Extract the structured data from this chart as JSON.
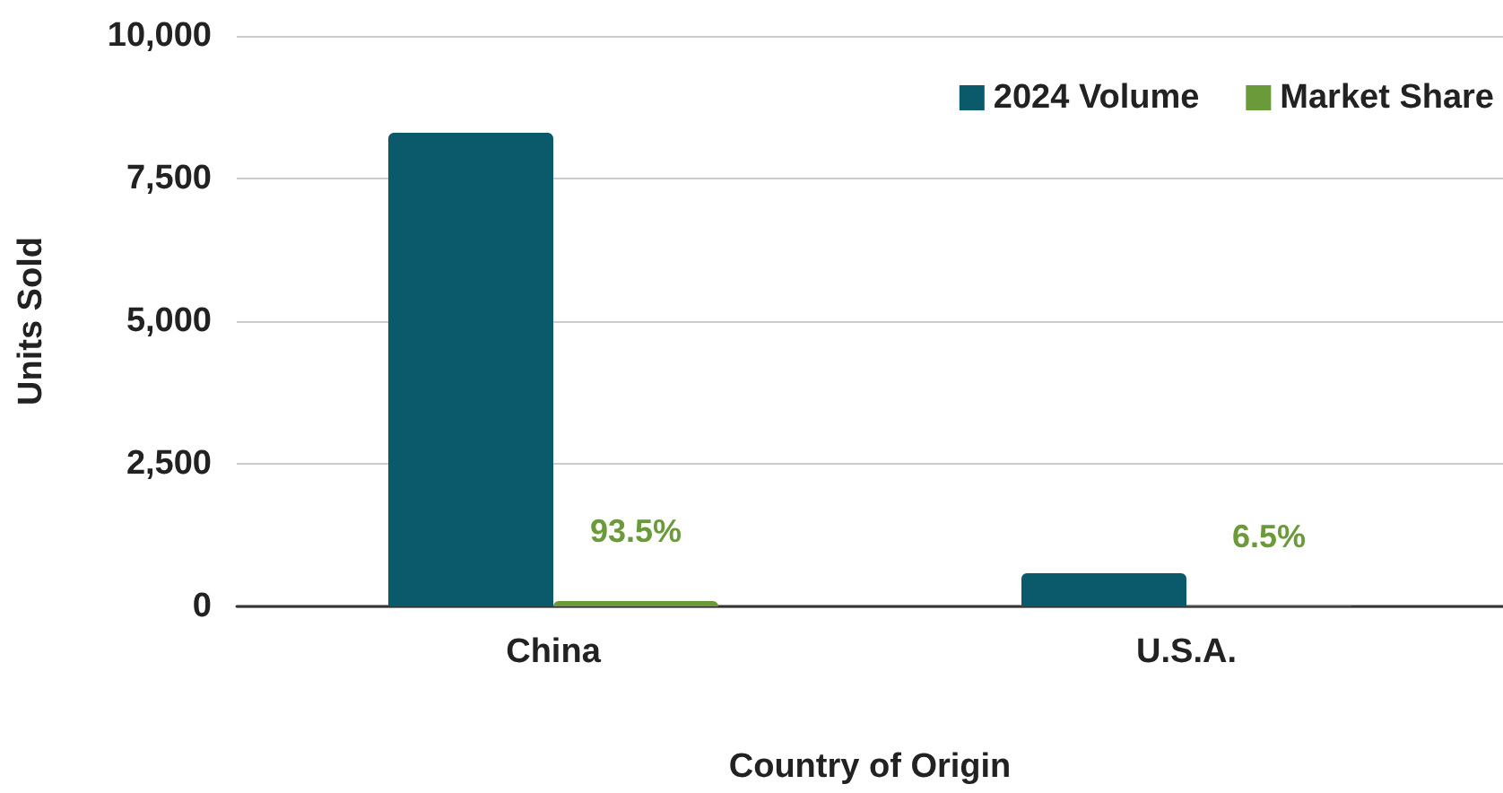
{
  "chart_data": {
    "type": "bar",
    "xlabel": "Country of Origin",
    "ylabel": "Units Sold",
    "categories": [
      "China",
      "U.S.A."
    ],
    "series": [
      {
        "name": "2024 Volume",
        "color": "#0b5a6b",
        "values": [
          8300,
          580
        ]
      },
      {
        "name": "Market Share",
        "color": "#6a9a3a",
        "values": [
          93.5,
          6.5
        ],
        "value_labels": [
          "93.5%",
          "6.5%"
        ]
      }
    ],
    "ylim": [
      0,
      10000
    ],
    "yticks": [
      0,
      {
        "value": 2500,
        "label": "2,500"
      },
      {
        "value": 5000,
        "label": "5,000"
      },
      {
        "value": 7500,
        "label": "7,500"
      },
      {
        "value": 10000,
        "label": "10,000"
      }
    ],
    "grid": "y",
    "legend": "top right"
  }
}
